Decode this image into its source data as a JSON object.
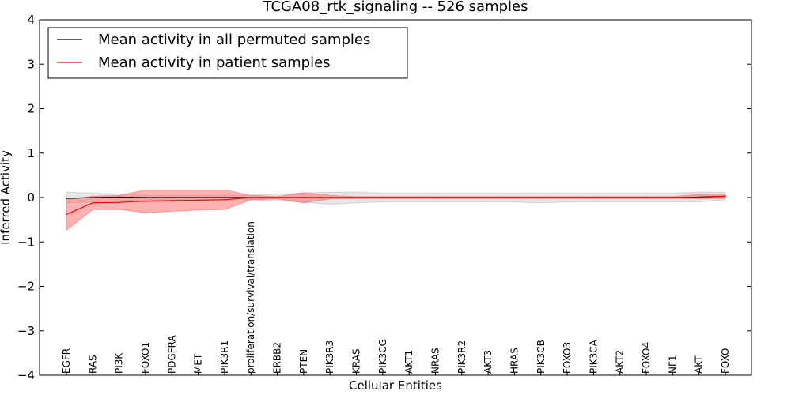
{
  "chart_data": {
    "type": "line",
    "title": "TCGA08_rtk_signaling -- 526 samples",
    "xlabel": "Cellular Entities",
    "ylabel": "Inferred Activity",
    "ylim": [
      -4,
      4
    ],
    "yticks": [
      4,
      3,
      2,
      1,
      0,
      -1,
      -2,
      -3,
      -4
    ],
    "ytick_labels": [
      "4",
      "3",
      "2",
      "1",
      "0",
      "−1",
      "−2",
      "−3",
      "−4"
    ],
    "grid": false,
    "legend_position": "top-left",
    "categories": [
      "EGFR",
      "RAS",
      "PI3K",
      "FOXO1",
      "PDGFRA",
      "MET",
      "PIK3R1",
      "proliferation/survival/translation",
      "ERBB2",
      "PTEN",
      "PIK3R3",
      "KRAS",
      "PIK3CG",
      "AKT1",
      "NRAS",
      "PIK3R2",
      "AKT3",
      "HRAS",
      "PIK3CB",
      "FOXO3",
      "PIK3CA",
      "AKT2",
      "FOXO4",
      "NF1",
      "AKT",
      "FOXO"
    ],
    "series": [
      {
        "name": "Mean activity in all permuted samples",
        "color": "#000000",
        "band_color": "#bbbbbb",
        "values": [
          -0.02,
          0.0,
          0.01,
          0.0,
          0.0,
          0.0,
          0.0,
          0.0,
          0.0,
          0.0,
          0.0,
          0.0,
          0.0,
          0.0,
          0.0,
          0.0,
          0.0,
          0.0,
          0.0,
          0.0,
          0.0,
          0.0,
          0.0,
          0.0,
          0.01,
          0.03
        ],
        "upper": [
          0.12,
          0.1,
          0.08,
          0.05,
          0.05,
          0.05,
          0.05,
          0.05,
          0.08,
          0.1,
          0.12,
          0.12,
          0.1,
          0.1,
          0.1,
          0.1,
          0.1,
          0.1,
          0.1,
          0.1,
          0.1,
          0.1,
          0.1,
          0.1,
          0.12,
          0.12
        ],
        "lower": [
          -0.12,
          -0.1,
          -0.08,
          -0.05,
          -0.05,
          -0.05,
          -0.05,
          -0.05,
          -0.08,
          -0.1,
          -0.15,
          -0.12,
          -0.1,
          -0.1,
          -0.1,
          -0.1,
          -0.1,
          -0.1,
          -0.12,
          -0.1,
          -0.1,
          -0.1,
          -0.1,
          -0.1,
          -0.1,
          -0.05
        ]
      },
      {
        "name": "Mean activity in patient samples",
        "color": "#ff0000",
        "band_color": "#ff6666",
        "values": [
          -0.38,
          -0.12,
          -0.11,
          -0.08,
          -0.07,
          -0.06,
          -0.05,
          0.0,
          0.0,
          0.0,
          0.0,
          0.0,
          0.0,
          0.0,
          0.0,
          0.0,
          0.0,
          0.0,
          0.0,
          0.0,
          0.0,
          0.0,
          0.0,
          0.0,
          0.0,
          0.03
        ],
        "upper": [
          -0.05,
          0.03,
          0.05,
          0.17,
          0.17,
          0.17,
          0.17,
          0.05,
          0.02,
          0.11,
          0.05,
          0.02,
          0.02,
          0.02,
          0.02,
          0.02,
          0.02,
          0.02,
          0.02,
          0.02,
          0.02,
          0.02,
          0.02,
          0.02,
          0.07,
          0.08
        ],
        "lower": [
          -0.73,
          -0.27,
          -0.27,
          -0.34,
          -0.31,
          -0.28,
          -0.27,
          -0.05,
          -0.03,
          -0.12,
          -0.03,
          -0.02,
          -0.02,
          -0.02,
          -0.02,
          -0.02,
          -0.02,
          -0.02,
          -0.02,
          -0.02,
          -0.02,
          -0.02,
          -0.02,
          -0.02,
          -0.02,
          -0.02
        ]
      }
    ]
  }
}
